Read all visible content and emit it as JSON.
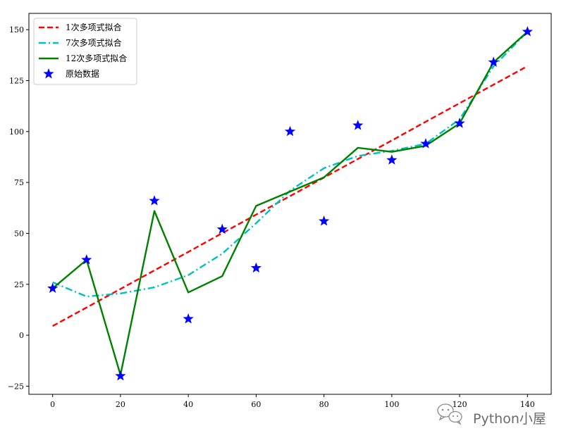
{
  "chart_data": {
    "type": "line",
    "title": "",
    "xlabel": "",
    "ylabel": "",
    "xlim": [
      -7,
      147
    ],
    "ylim": [
      -29,
      158
    ],
    "xticks": [
      0,
      20,
      40,
      60,
      80,
      100,
      120,
      140
    ],
    "yticks": [
      -25,
      0,
      25,
      50,
      75,
      100,
      125,
      150
    ],
    "x": [
      0,
      10,
      20,
      30,
      40,
      50,
      60,
      70,
      80,
      90,
      100,
      110,
      120,
      130,
      140
    ],
    "series": [
      {
        "name": "1次多项式拟合",
        "kind": "line",
        "style": "dashed",
        "color": "#ff0000",
        "values": [
          4.5,
          13.6,
          22.7,
          31.8,
          40.9,
          50.1,
          59.2,
          68.3,
          77.4,
          86.5,
          95.6,
          104.8,
          113.9,
          123.0,
          132.1
        ]
      },
      {
        "name": "7次多项式拟合",
        "kind": "line",
        "style": "dashdot",
        "color": "#00bfbf",
        "values": [
          26.0,
          19.0,
          20.5,
          23.5,
          29.5,
          40.0,
          55.0,
          71.0,
          82.0,
          88.0,
          90.5,
          94.0,
          106.0,
          132.0,
          149.0
        ]
      },
      {
        "name": "12次多项式拟合",
        "kind": "line",
        "style": "solid",
        "color": "#008000",
        "values": [
          23.0,
          37.0,
          -19.5,
          61.0,
          21.0,
          29.0,
          63.5,
          70.5,
          77.5,
          92.0,
          90.0,
          93.0,
          104.0,
          134.0,
          149.0
        ]
      },
      {
        "name": "原始数据",
        "kind": "scatter",
        "marker": "star",
        "color": "#0000ff",
        "values": [
          23,
          37,
          -20,
          66,
          8,
          52,
          33,
          100,
          56,
          103,
          86,
          94,
          104,
          134,
          149
        ]
      }
    ],
    "legend_position": "top-left",
    "grid": false
  },
  "watermark": {
    "text": "Python小屋",
    "icon": "wechat-icon"
  }
}
